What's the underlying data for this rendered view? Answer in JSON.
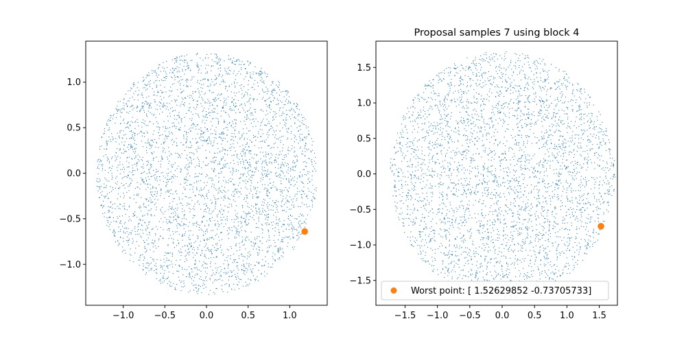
{
  "chart_data": [
    {
      "type": "scatter",
      "title": "",
      "xlabel": "",
      "ylabel": "",
      "xlim": [
        -1.45,
        1.45
      ],
      "ylim": [
        -1.45,
        1.45
      ],
      "xticks": [
        -1.0,
        -0.5,
        0.0,
        0.5,
        1.0
      ],
      "xtick_labels": [
        "−1.0",
        "−0.5",
        "0.0",
        "0.5",
        "1.0"
      ],
      "yticks": [
        -1.0,
        -0.5,
        0.0,
        0.5,
        1.0
      ],
      "ytick_labels": [
        "−1.0",
        "−0.5",
        "0.0",
        "0.5",
        "1.0"
      ],
      "grid": false,
      "series": [
        {
          "kind": "point-cloud",
          "distribution": "uniform-disc",
          "center": [
            0.0,
            0.0
          ],
          "radius": 1.33,
          "count": 4000,
          "color": "#1f77b4",
          "marker": "pixel"
        },
        {
          "kind": "highlight",
          "x": [
            1.18
          ],
          "y": [
            -0.64
          ],
          "color": "#ff7f0e",
          "marker": "circle"
        }
      ],
      "legend": null
    },
    {
      "type": "scatter",
      "title": "Proposal samples 7 using block 4",
      "xlabel": "",
      "ylabel": "",
      "xlim": [
        -1.95,
        1.78
      ],
      "ylim": [
        -1.85,
        1.87
      ],
      "xticks": [
        -1.5,
        -1.0,
        -0.5,
        0.0,
        0.5,
        1.0,
        1.5
      ],
      "xtick_labels": [
        "−1.5",
        "−1.0",
        "−0.5",
        "0.0",
        "0.5",
        "1.0",
        "1.5"
      ],
      "yticks": [
        -1.5,
        -1.0,
        -0.5,
        0.0,
        0.5,
        1.0,
        1.5
      ],
      "ytick_labels": [
        "−1.5",
        "−1.0",
        "−0.5",
        "0.0",
        "0.5",
        "1.0",
        "1.5"
      ],
      "grid": false,
      "series": [
        {
          "kind": "point-cloud",
          "distribution": "uniform-disc",
          "center": [
            0.0,
            0.0
          ],
          "radius": 1.74,
          "count": 4000,
          "color": "#1f77b4",
          "marker": "pixel"
        },
        {
          "kind": "highlight",
          "name": "Worst point: [ 1.52629852 -0.73705733]",
          "x": [
            1.52629852
          ],
          "y": [
            -0.73705733
          ],
          "color": "#ff7f0e",
          "marker": "circle"
        }
      ],
      "legend": {
        "placement": "lower-left",
        "entries": [
          "Worst point: [ 1.52629852 -0.73705733]"
        ]
      }
    }
  ]
}
